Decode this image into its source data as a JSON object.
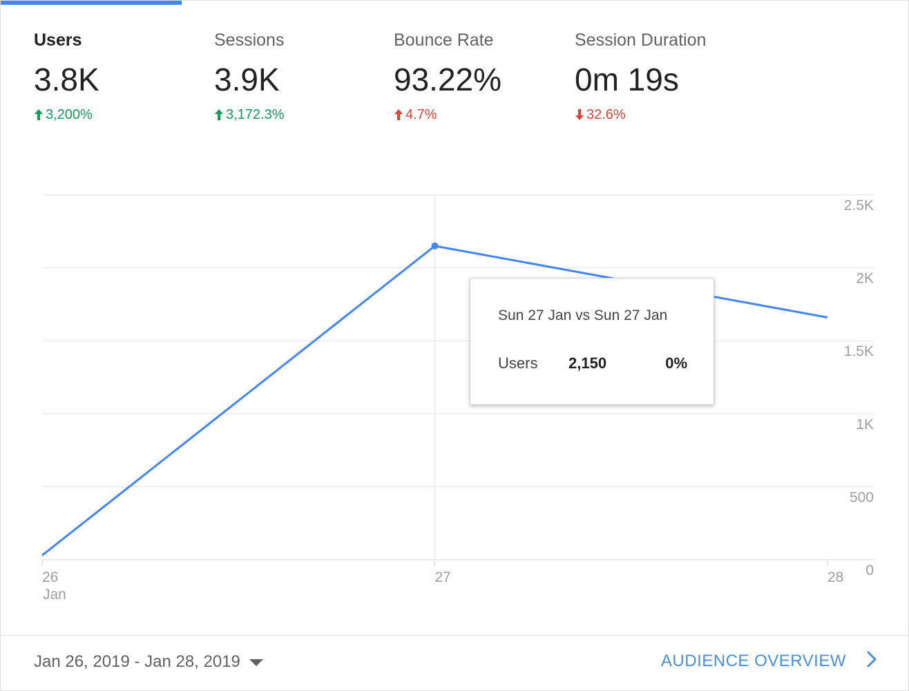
{
  "metrics": [
    {
      "name": "Users",
      "value": "3.8K",
      "change": "3,200%",
      "direction": "up",
      "tone": "green",
      "active": true
    },
    {
      "name": "Sessions",
      "value": "3.9K",
      "change": "3,172.3%",
      "direction": "up",
      "tone": "green",
      "active": false
    },
    {
      "name": "Bounce Rate",
      "value": "93.22%",
      "change": "4.7%",
      "direction": "up",
      "tone": "red",
      "active": false
    },
    {
      "name": "Session Duration",
      "value": "0m 19s",
      "change": "32.6%",
      "direction": "down",
      "tone": "red",
      "active": false
    }
  ],
  "colors": {
    "accent": "#4285f4",
    "positive": "#0f9d58",
    "negative": "#db4437",
    "link": "#4a90d9"
  },
  "chart_data": {
    "type": "line",
    "x": [
      "26",
      "27",
      "28"
    ],
    "x_sublabels": [
      "Jan",
      "",
      ""
    ],
    "series": [
      {
        "values": [
          30,
          2150,
          1660
        ],
        "color": "#4285f4"
      }
    ],
    "ylim": [
      0,
      2500
    ],
    "yticks": [
      0,
      500,
      1000,
      1500,
      2000,
      2500
    ],
    "ytick_labels": [
      "0",
      "500",
      "1K",
      "1.5K",
      "2K",
      "2.5K"
    ],
    "highlight_index": 1,
    "grid": true
  },
  "tooltip": {
    "title": "Sun 27 Jan vs Sun 27 Jan",
    "metric": "Users",
    "value": "2,150",
    "change": "0%"
  },
  "footer": {
    "date_range": "Jan 26, 2019 - Jan 28, 2019",
    "dropdown_icon": "caret-down-icon",
    "link_label": "AUDIENCE OVERVIEW",
    "link_icon": "chevron-right-icon"
  }
}
